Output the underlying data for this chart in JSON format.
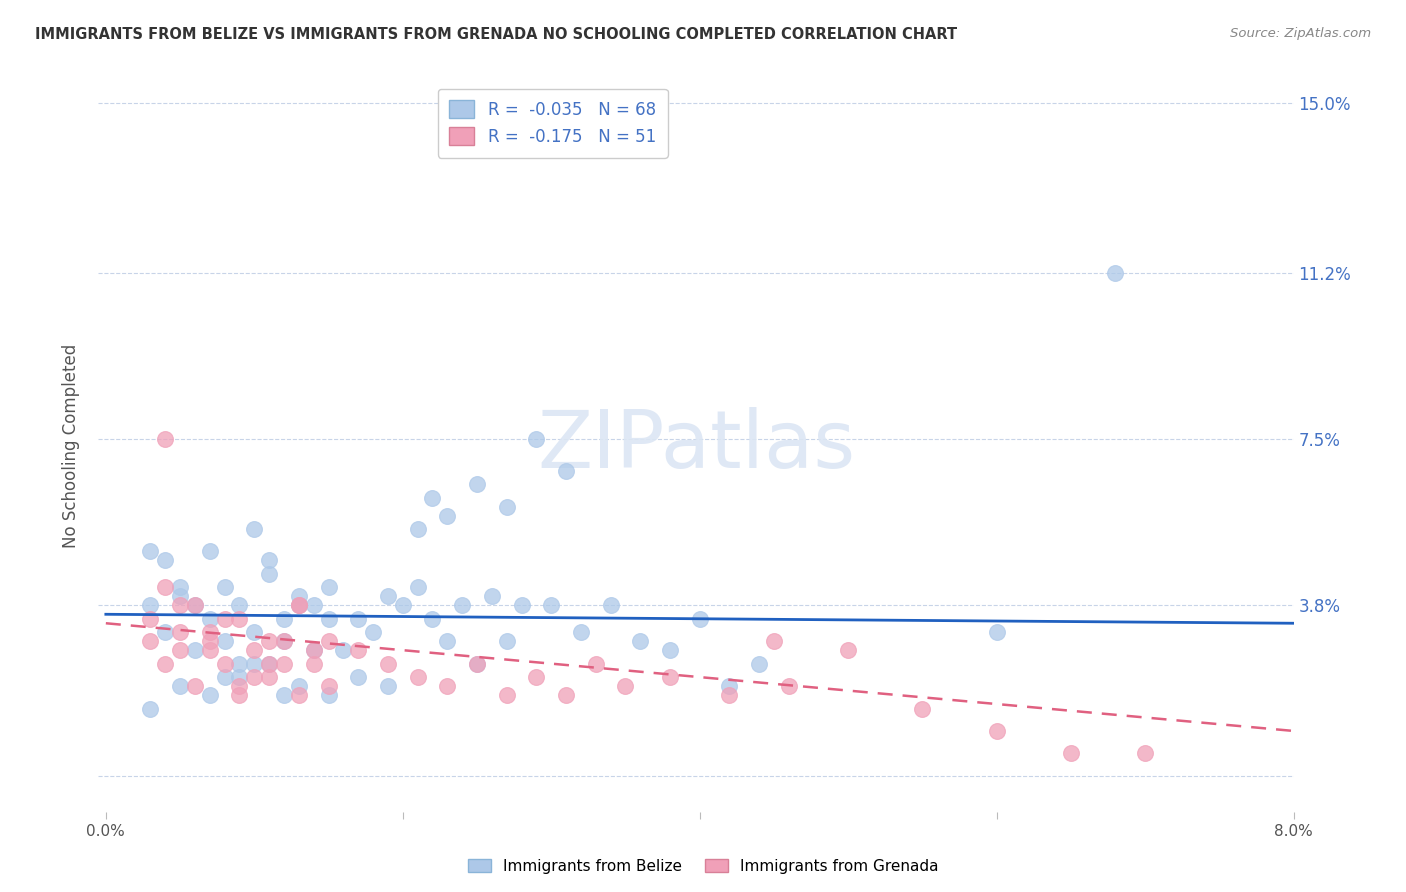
{
  "title": "IMMIGRANTS FROM BELIZE VS IMMIGRANTS FROM GRENADA NO SCHOOLING COMPLETED CORRELATION CHART",
  "source": "Source: ZipAtlas.com",
  "ylabel": "No Schooling Completed",
  "x_min": 0.0,
  "x_max": 0.08,
  "y_min": -0.008,
  "y_max": 0.155,
  "y_ticks": [
    0.0,
    0.038,
    0.075,
    0.112,
    0.15
  ],
  "y_tick_labels_right": [
    "",
    "3.8%",
    "7.5%",
    "11.2%",
    "15.0%"
  ],
  "x_ticks": [
    0.0,
    0.02,
    0.04,
    0.06,
    0.08
  ],
  "x_tick_labels": [
    "0.0%",
    "",
    "",
    "",
    "8.0%"
  ],
  "belize_R": -0.035,
  "belize_N": 68,
  "grenada_R": -0.175,
  "grenada_N": 51,
  "belize_color": "#adc8e8",
  "grenada_color": "#f0a0b8",
  "belize_line_color": "#2060c0",
  "grenada_line_color": "#e06080",
  "background_color": "#ffffff",
  "grid_color": "#c8d4e8",
  "title_color": "#333333",
  "source_color": "#888888",
  "axis_label_color": "#555555",
  "tick_color_right": "#4472c4",
  "watermark_color": "#dce6f4",
  "watermark_alpha": 0.9,
  "belize_x": [
    0.003,
    0.004,
    0.005,
    0.006,
    0.007,
    0.008,
    0.008,
    0.009,
    0.01,
    0.01,
    0.011,
    0.012,
    0.012,
    0.013,
    0.014,
    0.015,
    0.003,
    0.004,
    0.005,
    0.006,
    0.007,
    0.008,
    0.009,
    0.01,
    0.011,
    0.012,
    0.013,
    0.014,
    0.015,
    0.016,
    0.017,
    0.018,
    0.019,
    0.02,
    0.021,
    0.022,
    0.023,
    0.024,
    0.025,
    0.026,
    0.027,
    0.028,
    0.03,
    0.032,
    0.034,
    0.036,
    0.038,
    0.04,
    0.042,
    0.044,
    0.003,
    0.005,
    0.007,
    0.009,
    0.011,
    0.013,
    0.015,
    0.017,
    0.019,
    0.021,
    0.022,
    0.023,
    0.025,
    0.027,
    0.029,
    0.031,
    0.06,
    0.068
  ],
  "belize_y": [
    0.038,
    0.032,
    0.04,
    0.028,
    0.035,
    0.042,
    0.022,
    0.038,
    0.025,
    0.032,
    0.045,
    0.03,
    0.018,
    0.038,
    0.028,
    0.035,
    0.05,
    0.048,
    0.042,
    0.038,
    0.05,
    0.03,
    0.025,
    0.055,
    0.048,
    0.035,
    0.04,
    0.038,
    0.042,
    0.028,
    0.035,
    0.032,
    0.04,
    0.038,
    0.042,
    0.035,
    0.03,
    0.038,
    0.025,
    0.04,
    0.03,
    0.038,
    0.038,
    0.032,
    0.038,
    0.03,
    0.028,
    0.035,
    0.02,
    0.025,
    0.015,
    0.02,
    0.018,
    0.022,
    0.025,
    0.02,
    0.018,
    0.022,
    0.02,
    0.055,
    0.062,
    0.058,
    0.065,
    0.06,
    0.075,
    0.068,
    0.032,
    0.112
  ],
  "grenada_x": [
    0.003,
    0.004,
    0.005,
    0.006,
    0.007,
    0.008,
    0.009,
    0.01,
    0.011,
    0.012,
    0.013,
    0.014,
    0.015,
    0.004,
    0.005,
    0.006,
    0.007,
    0.008,
    0.009,
    0.01,
    0.011,
    0.012,
    0.013,
    0.014,
    0.003,
    0.005,
    0.007,
    0.009,
    0.011,
    0.013,
    0.015,
    0.017,
    0.019,
    0.021,
    0.023,
    0.025,
    0.027,
    0.029,
    0.031,
    0.033,
    0.035,
    0.038,
    0.042,
    0.046,
    0.05,
    0.055,
    0.06,
    0.065,
    0.045,
    0.07,
    0.004
  ],
  "grenada_y": [
    0.03,
    0.025,
    0.038,
    0.02,
    0.028,
    0.035,
    0.018,
    0.022,
    0.03,
    0.025,
    0.038,
    0.028,
    0.02,
    0.042,
    0.032,
    0.038,
    0.03,
    0.025,
    0.035,
    0.028,
    0.022,
    0.03,
    0.018,
    0.025,
    0.035,
    0.028,
    0.032,
    0.02,
    0.025,
    0.038,
    0.03,
    0.028,
    0.025,
    0.022,
    0.02,
    0.025,
    0.018,
    0.022,
    0.018,
    0.025,
    0.02,
    0.022,
    0.018,
    0.02,
    0.028,
    0.015,
    0.01,
    0.005,
    0.03,
    0.005,
    0.075
  ],
  "belize_line_y0": 0.036,
  "belize_line_y1": 0.034,
  "grenada_line_y0": 0.034,
  "grenada_line_y1": 0.01
}
